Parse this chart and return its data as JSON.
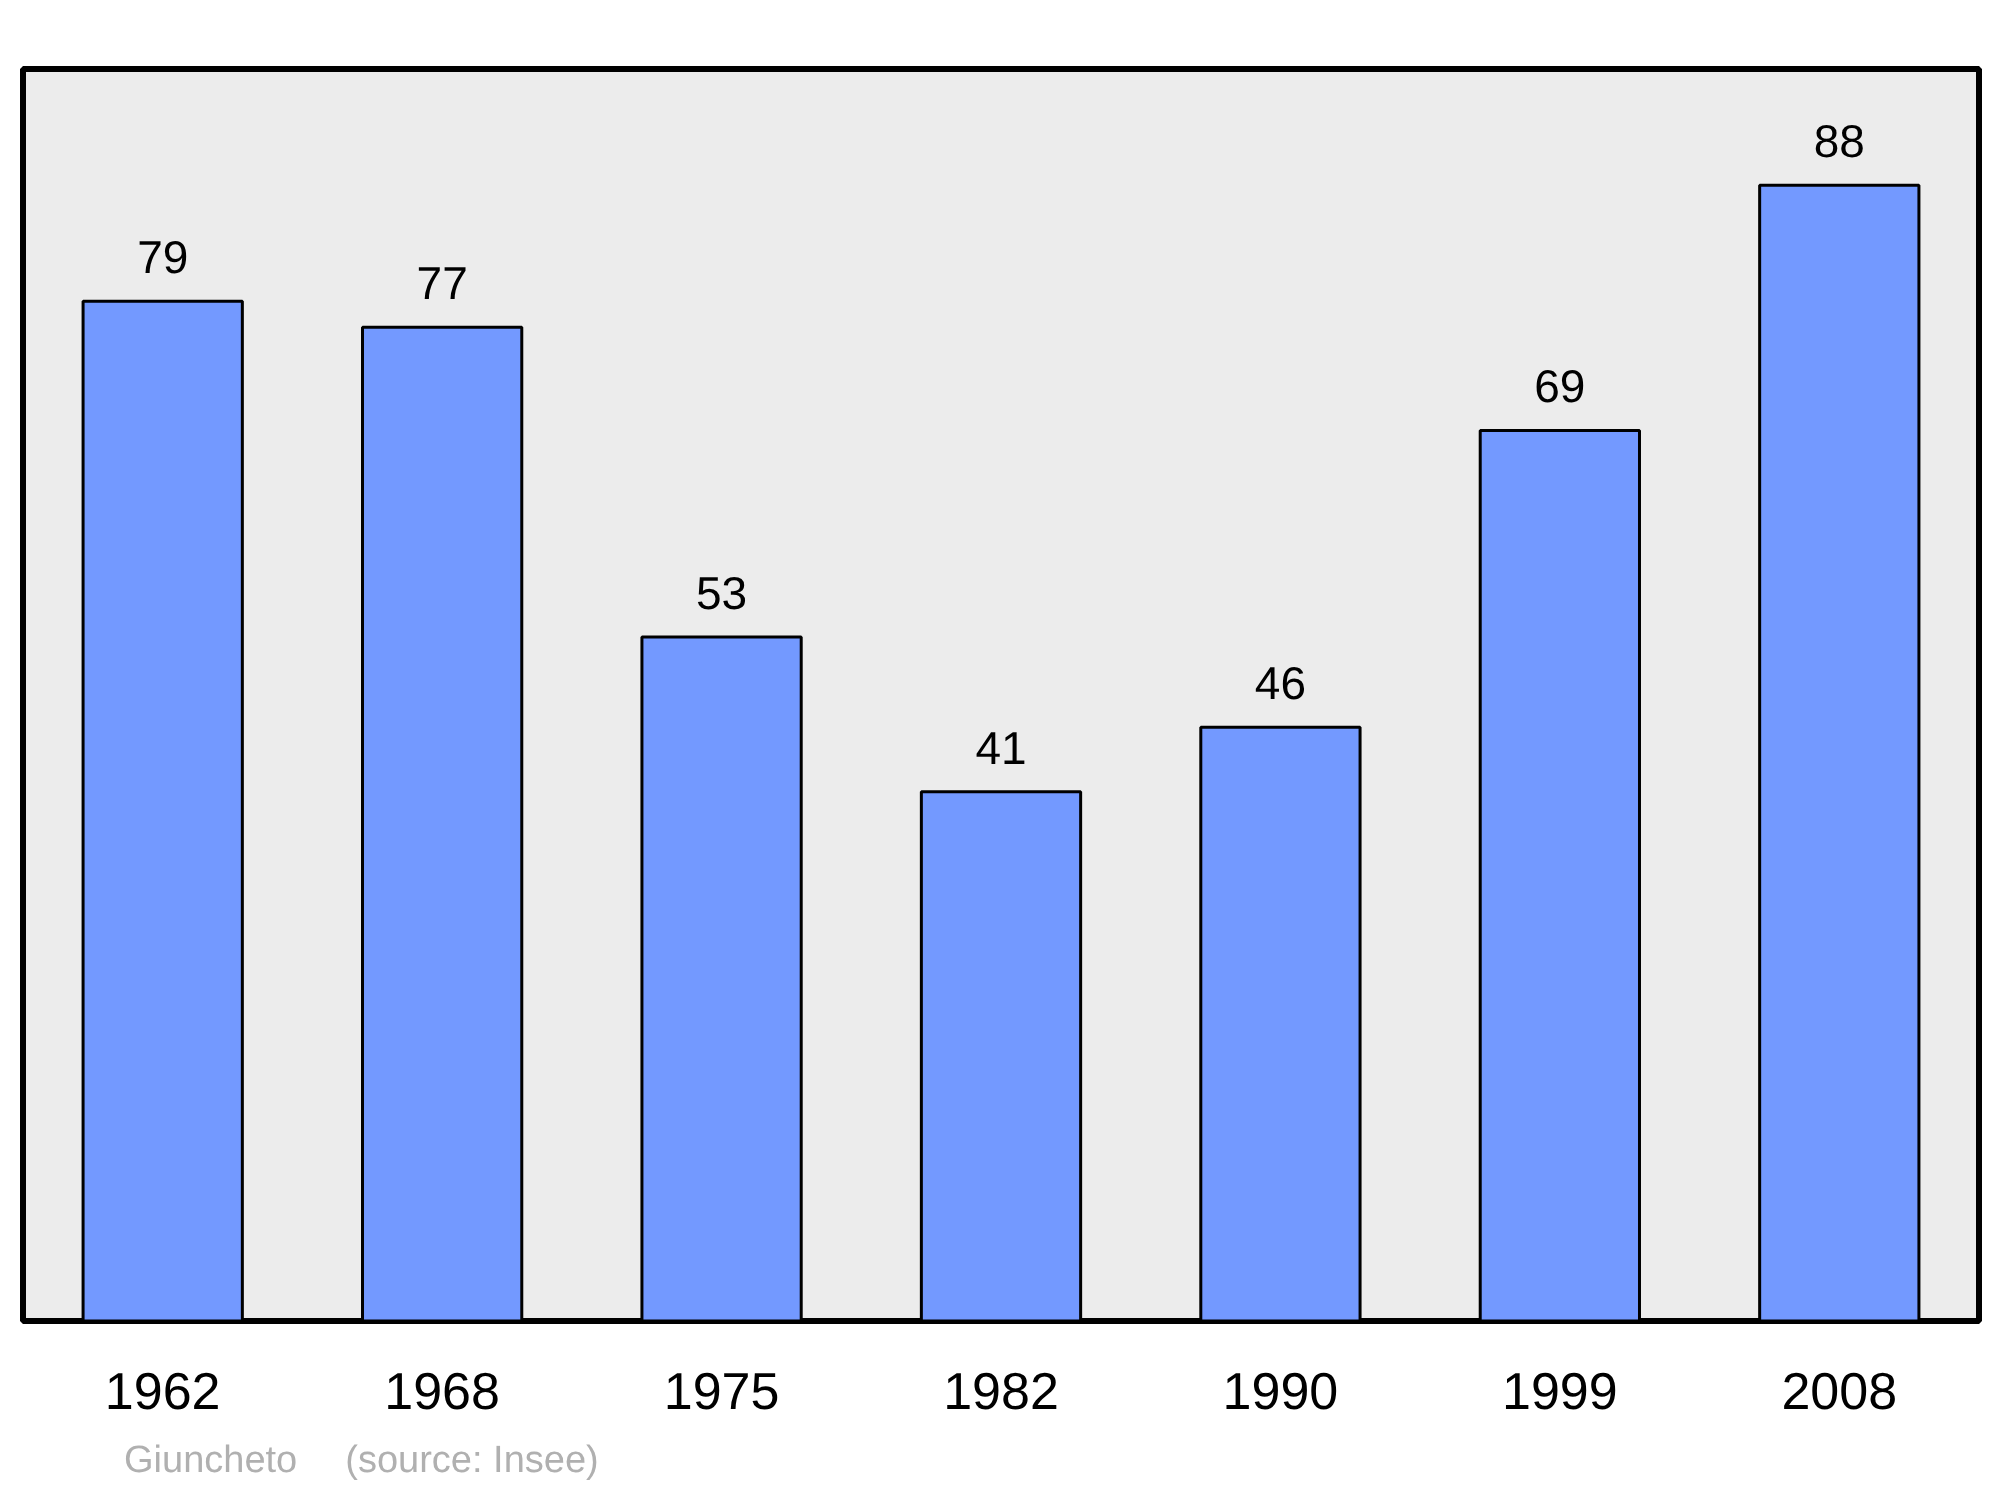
{
  "chart_data": {
    "type": "bar",
    "categories": [
      "1962",
      "1968",
      "1975",
      "1982",
      "1990",
      "1999",
      "2008"
    ],
    "values": [
      79,
      77,
      53,
      41,
      46,
      69,
      88
    ],
    "color": "#7399ff",
    "ylim": [
      0,
      97
    ],
    "data_labels": true,
    "grid": false,
    "annotations": [
      "Giuncheto",
      "(source: Insee)"
    ]
  }
}
